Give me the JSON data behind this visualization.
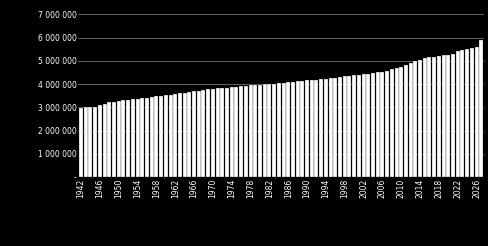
{
  "years_start": 1942,
  "years_end": 2027,
  "background_color": "#000000",
  "bar_color": "#ffffff",
  "bar_edge_color": "#111111",
  "grid_color": "#888888",
  "text_color": "#ffffff",
  "ytick_values": [
    0,
    1000000,
    2000000,
    3000000,
    4000000,
    5000000,
    6000000,
    7000000
  ],
  "ylim": [
    0,
    7300000
  ],
  "xtick_years": [
    1942,
    1946,
    1950,
    1954,
    1958,
    1962,
    1966,
    1970,
    1974,
    1978,
    1982,
    1986,
    1990,
    1994,
    1998,
    2002,
    2006,
    2010,
    2014,
    2018,
    2022,
    2026
  ],
  "population_data": {
    "1942": 2971000,
    "1943": 2999000,
    "1944": 3019000,
    "1945": 3030000,
    "1946": 3100000,
    "1947": 3160000,
    "1948": 3211000,
    "1949": 3250000,
    "1950": 3277000,
    "1951": 3300000,
    "1952": 3328000,
    "1953": 3349000,
    "1954": 3369000,
    "1955": 3391000,
    "1956": 3415000,
    "1957": 3441000,
    "1958": 3468000,
    "1959": 3495000,
    "1960": 3520000,
    "1961": 3546000,
    "1962": 3574000,
    "1963": 3601000,
    "1964": 3629000,
    "1965": 3659000,
    "1966": 3690000,
    "1967": 3720000,
    "1968": 3747000,
    "1969": 3771000,
    "1970": 3793000,
    "1971": 3812000,
    "1972": 3833000,
    "1973": 3851000,
    "1974": 3870000,
    "1975": 3891000,
    "1976": 3910000,
    "1977": 3925000,
    "1978": 3941000,
    "1979": 3956000,
    "1980": 3972000,
    "1981": 3988000,
    "1982": 4004000,
    "1983": 4019000,
    "1984": 4035000,
    "1985": 4051000,
    "1986": 4071000,
    "1987": 4095000,
    "1988": 4119000,
    "1989": 4139000,
    "1990": 4159000,
    "1991": 4175000,
    "1992": 4192000,
    "1993": 4212000,
    "1994": 4237000,
    "1995": 4261000,
    "1996": 4283000,
    "1997": 4305000,
    "1998": 4330000,
    "1999": 4352000,
    "2000": 4374000,
    "2001": 4394000,
    "2002": 4418000,
    "2003": 4445000,
    "2004": 4472000,
    "2005": 4500000,
    "2006": 4534000,
    "2007": 4578000,
    "2008": 4631000,
    "2009": 4690000,
    "2010": 4755000,
    "2011": 4826000,
    "2012": 4907000,
    "2013": 4985000,
    "2014": 5052000,
    "2015": 5109000,
    "2016": 5149000,
    "2017": 5174000,
    "2018": 5204000,
    "2019": 5233000,
    "2020": 5261000,
    "2021": 5286000,
    "2022": 5425000,
    "2023": 5488000,
    "2024": 5530000,
    "2025": 5570000,
    "2026": 5610000,
    "2027": 5900000
  },
  "figsize": [
    4.89,
    2.46
  ],
  "dpi": 100
}
